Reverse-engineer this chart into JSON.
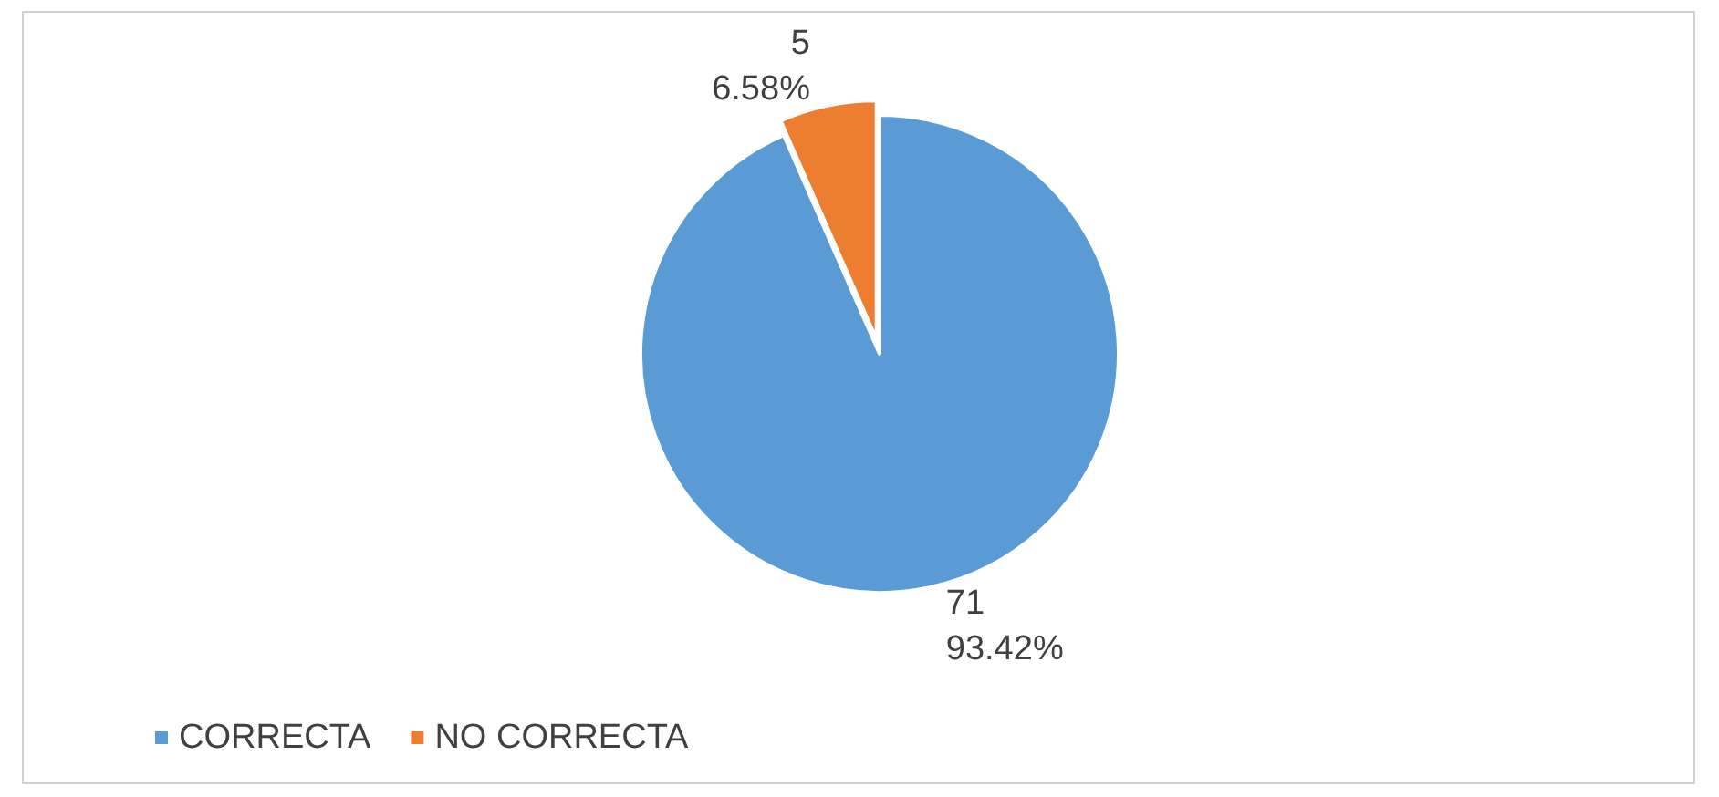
{
  "chart_data": {
    "type": "pie",
    "categories": [
      "CORRECTA",
      "NO CORRECTA"
    ],
    "values": [
      71,
      5
    ],
    "colors": [
      "#5b9bd5",
      "#ed7d31"
    ],
    "value_labels": [
      "71\n93.42%",
      "5\n6.58%"
    ],
    "legend": "bottom left"
  }
}
